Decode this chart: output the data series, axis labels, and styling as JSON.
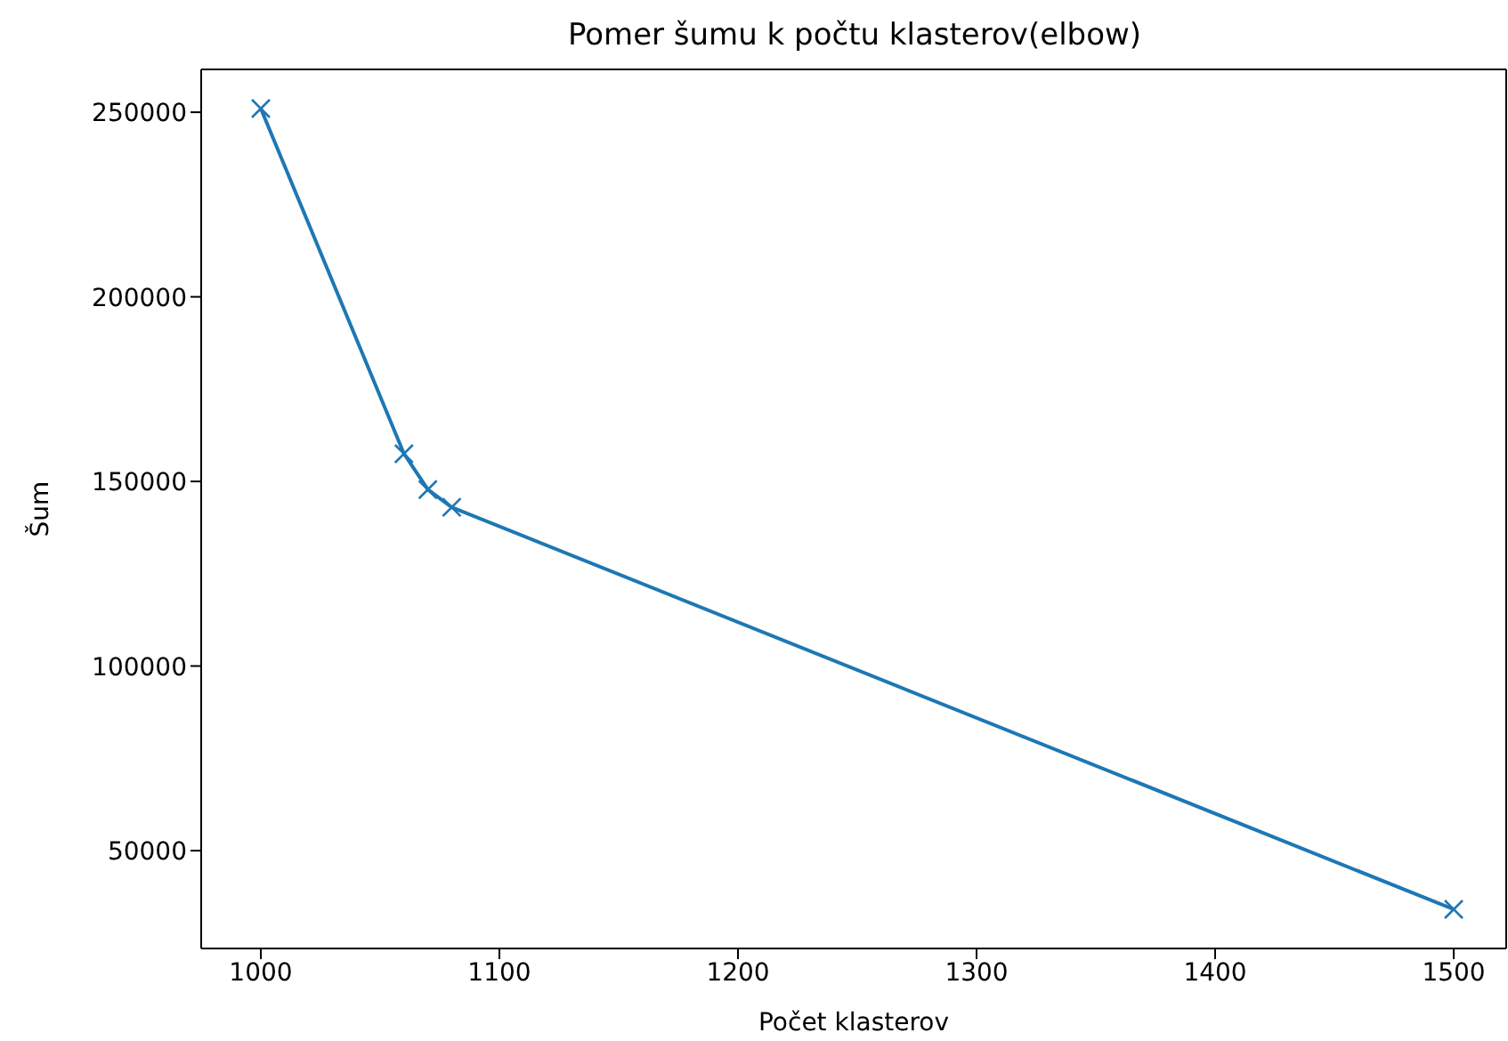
{
  "chart_data": {
    "type": "line",
    "title": "Pomer šumu k počtu klasterov(elbow)",
    "xlabel": "Počet klasterov",
    "ylabel": "Šum",
    "x": [
      1000,
      1060,
      1070,
      1080,
      1500
    ],
    "series": [
      {
        "color": "#1f77b4",
        "values": [
          251000,
          157500,
          147800,
          143000,
          34100
        ]
      }
    ],
    "xlim": [
      975,
      1522
    ],
    "xticks": [
      1000,
      1100,
      1200,
      1300,
      1400,
      1500
    ],
    "ylim": [
      23500,
      261600
    ],
    "yticks": [
      50000,
      100000,
      150000,
      200000,
      250000
    ],
    "marker": "cross",
    "line_style": "solid",
    "grid": false,
    "legend": false
  }
}
